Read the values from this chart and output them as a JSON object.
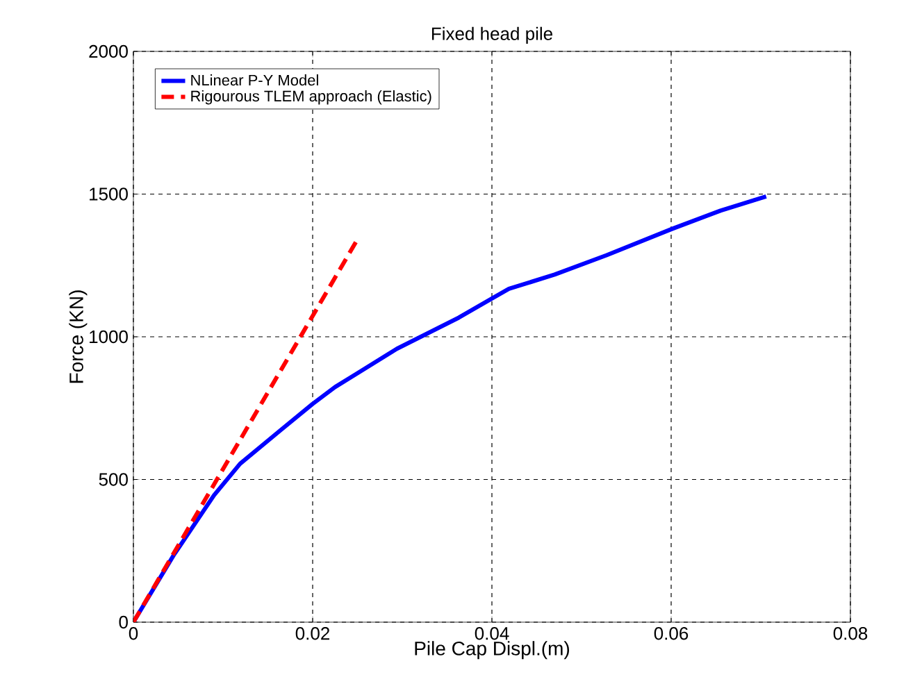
{
  "chart_data": {
    "type": "line",
    "title": "Fixed head pile",
    "xlabel": "Pile Cap Displ.(m)",
    "ylabel": "Force (KN)",
    "xlim": [
      0,
      0.08
    ],
    "ylim": [
      0,
      2000
    ],
    "xticks": [
      0,
      0.02,
      0.04,
      0.06,
      0.08
    ],
    "yticks": [
      0,
      500,
      1000,
      1500,
      2000
    ],
    "grid": true,
    "legend": "top left",
    "series": [
      {
        "name": "NLinear P-Y Model",
        "color": "#0000ff",
        "line_style": "solid",
        "x": [
          0,
          0.0045,
          0.009,
          0.0119,
          0.0164,
          0.02,
          0.0225,
          0.0294,
          0.0363,
          0.04,
          0.0419,
          0.047,
          0.0528,
          0.0601,
          0.0655,
          0.0706
        ],
        "values": [
          0,
          235,
          445,
          555,
          672,
          765,
          824,
          958,
          1067,
          1134,
          1168,
          1218,
          1286,
          1378,
          1442,
          1492
        ]
      },
      {
        "name": "Rigourous TLEM approach (Elastic)",
        "color": "#ff0000",
        "line_style": "dashed",
        "x": [
          0,
          0.0249
        ],
        "values": [
          0,
          1336
        ]
      }
    ]
  }
}
